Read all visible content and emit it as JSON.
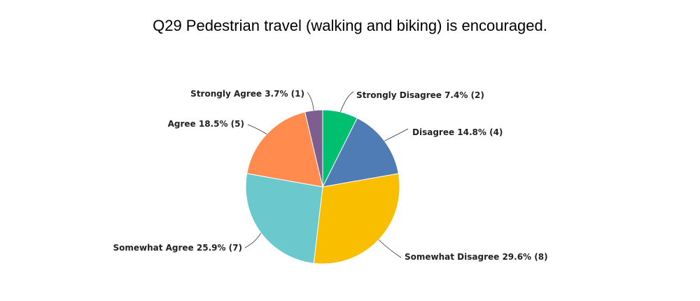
{
  "chart_data": {
    "type": "pie",
    "title": "Q29 Pedestrian travel (walking and biking) is encouraged.",
    "slices": [
      {
        "label": "Strongly Disagree 7.4% (2)",
        "percent": 7.4,
        "count": 2,
        "color": "#00bf6f"
      },
      {
        "label": "Disagree 14.8% (4)",
        "percent": 14.8,
        "count": 4,
        "color": "#507cb6"
      },
      {
        "label": "Somewhat Disagree 29.6% (8)",
        "percent": 29.6,
        "count": 8,
        "color": "#f9be00"
      },
      {
        "label": "Somewhat Agree 25.9% (7)",
        "percent": 25.9,
        "count": 7,
        "color": "#6bc8cd"
      },
      {
        "label": "Agree 18.5% (5)",
        "percent": 18.5,
        "count": 5,
        "color": "#ff8b4f"
      },
      {
        "label": "Strongly Agree 3.7% (1)",
        "percent": 3.7,
        "count": 1,
        "color": "#7d5e90"
      }
    ]
  }
}
